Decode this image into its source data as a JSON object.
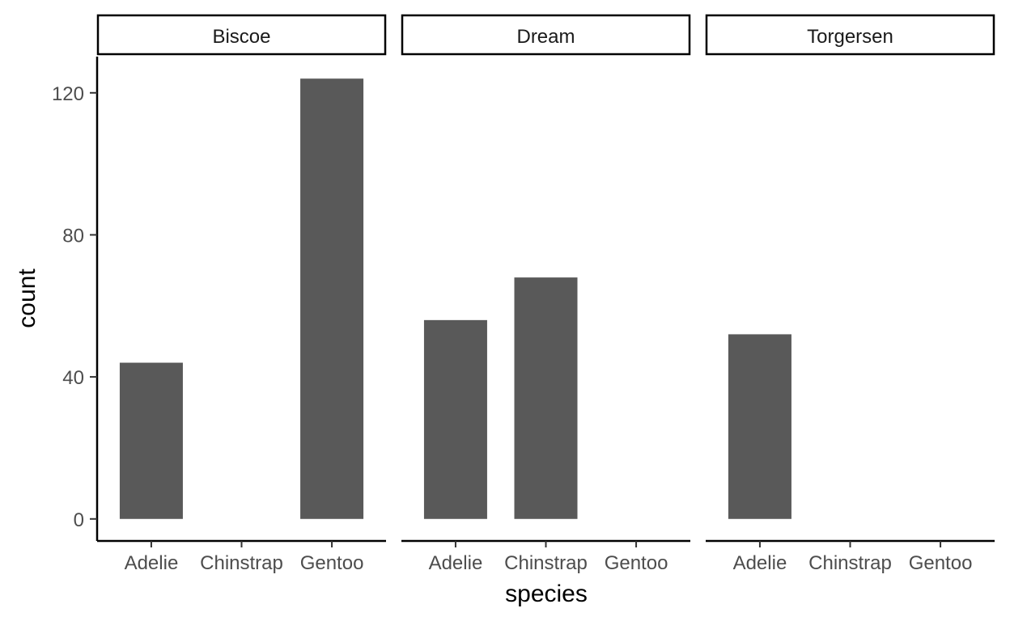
{
  "chart_data": {
    "type": "bar",
    "facet_by": "island",
    "facets": [
      {
        "label": "Biscoe",
        "categories": [
          "Adelie",
          "Chinstrap",
          "Gentoo"
        ],
        "values": [
          44,
          0,
          124
        ]
      },
      {
        "label": "Dream",
        "categories": [
          "Adelie",
          "Chinstrap",
          "Gentoo"
        ],
        "values": [
          56,
          68,
          0
        ]
      },
      {
        "label": "Torgersen",
        "categories": [
          "Adelie",
          "Chinstrap",
          "Gentoo"
        ],
        "values": [
          52,
          0,
          0
        ]
      }
    ],
    "xlabel": "species",
    "ylabel": "count",
    "yticks": [
      0,
      40,
      80,
      120
    ],
    "ylim": [
      -6.2,
      130.2
    ],
    "bar_color": "#595959",
    "grid": false
  }
}
